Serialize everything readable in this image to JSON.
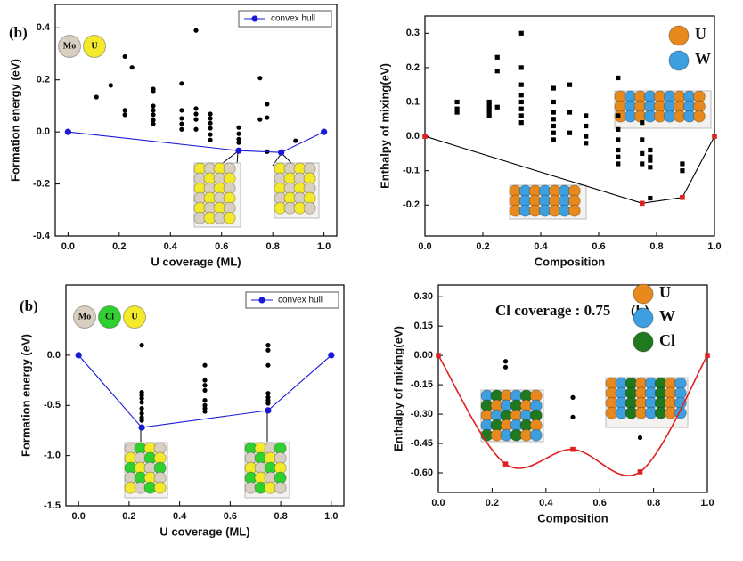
{
  "chart_data": [
    {
      "type": "scatter",
      "panel_label": "(b)",
      "xlabel": "U coverage (ML)",
      "ylabel": "Formation energy (eV)",
      "xlim": [
        -0.05,
        1.05
      ],
      "ylim": [
        -0.4,
        0.49
      ],
      "xticks": [
        {
          "value": 0,
          "label": "0.0"
        },
        0.2,
        0.4,
        0.6,
        0.8,
        {
          "value": 1,
          "label": "1.0"
        }
      ],
      "yticks": [
        -0.4,
        -0.2,
        {
          "value": 0,
          "label": "0.0"
        },
        0.2,
        0.4
      ],
      "atoms": [
        {
          "label": "Mo",
          "color": "#d9cfc0"
        },
        {
          "label": "U",
          "color": "#f2ea2a"
        }
      ],
      "legend": "upper right",
      "series": [
        {
          "color": "#000000",
          "marker": "circle",
          "x": [
            0.111,
            0.167,
            0.222,
            0.222,
            0.222,
            0.25,
            0.333,
            0.333,
            0.333,
            0.333,
            0.333,
            0.333,
            0.333,
            0.444,
            0.444,
            0.444,
            0.444,
            0.444,
            0.5,
            0.5,
            0.5,
            0.5,
            0.5,
            0.556,
            0.556,
            0.556,
            0.556,
            0.556,
            0.556,
            0.667,
            0.667,
            0.667,
            0.667,
            0.75,
            0.75,
            0.778,
            0.778,
            0.778,
            0.889
          ],
          "values": [
            0.134,
            0.179,
            0.29,
            0.083,
            0.066,
            0.248,
            0.165,
            0.155,
            0.1,
            0.083,
            0.066,
            0.045,
            0.031,
            0.186,
            0.083,
            0.052,
            0.031,
            0.01,
            0.39,
            0.09,
            0.069,
            0.048,
            0.01,
            0.069,
            0.052,
            0.034,
            0.014,
            -0.01,
            -0.031,
            0.017,
            -0.007,
            -0.028,
            -0.041,
            0.207,
            0.048,
            0.107,
            0.055,
            -0.076,
            -0.034
          ]
        },
        {
          "name": "convex hull",
          "color": "#1a1ad6",
          "marker": "circle",
          "line": true,
          "x": [
            0,
            0.667,
            0.833,
            1
          ],
          "values": [
            0,
            -0.072,
            -0.079,
            0
          ]
        }
      ]
    },
    {
      "type": "scatter",
      "xlabel": "Composition",
      "ylabel": "Enthalpy of mixing(eV)",
      "xlim": [
        0,
        1
      ],
      "ylim": [
        -0.29,
        0.35
      ],
      "xticks": [
        {
          "value": 0,
          "label": "0.0"
        },
        0.2,
        0.4,
        0.6,
        0.8,
        {
          "value": 1,
          "label": "1.0"
        }
      ],
      "yticks": [
        -0.2,
        -0.1,
        {
          "value": 0,
          "label": "0.0"
        },
        0.1,
        0.2,
        0.3
      ],
      "atoms": [
        {
          "label": "U",
          "color": "#e8891e"
        },
        {
          "label": "W",
          "color": "#3d9fe0"
        }
      ],
      "series": [
        {
          "color": "#000000",
          "marker": "square",
          "x": [
            0.111,
            0.111,
            0.111,
            0.222,
            0.222,
            0.222,
            0.222,
            0.222,
            0.25,
            0.25,
            0.25,
            0.333,
            0.333,
            0.333,
            0.333,
            0.333,
            0.333,
            0.333,
            0.333,
            0.444,
            0.444,
            0.444,
            0.444,
            0.444,
            0.444,
            0.444,
            0.5,
            0.5,
            0.5,
            0.556,
            0.556,
            0.556,
            0.556,
            0.667,
            0.667,
            0.667,
            0.667,
            0.667,
            0.667,
            0.667,
            0.75,
            0.75,
            0.75,
            0.75,
            0.778,
            0.778,
            0.778,
            0.778,
            0.778,
            0.889,
            0.889
          ],
          "values": [
            0.1,
            0.08,
            0.07,
            0.1,
            0.09,
            0.08,
            0.07,
            0.06,
            0.23,
            0.19,
            0.085,
            0.3,
            0.2,
            0.15,
            0.12,
            0.1,
            0.08,
            0.06,
            0.04,
            0.14,
            0.1,
            0.07,
            0.05,
            0.03,
            0.01,
            -0.01,
            0.15,
            0.07,
            0.01,
            0.06,
            0.03,
            0,
            -0.02,
            0.17,
            0.06,
            0.02,
            -0.01,
            -0.04,
            -0.06,
            -0.08,
            0.04,
            -0.01,
            -0.05,
            -0.08,
            -0.04,
            -0.06,
            -0.07,
            -0.09,
            -0.18,
            -0.08,
            -0.1
          ]
        },
        {
          "color": "#000000",
          "marker_color": "#e02020",
          "marker": "square",
          "line": true,
          "x": [
            0,
            0.75,
            0.889,
            1
          ],
          "values": [
            0,
            -0.195,
            -0.178,
            0
          ]
        }
      ]
    },
    {
      "type": "scatter",
      "panel_label": "(b)",
      "xlabel": "U coverage (ML)",
      "ylabel": "Formation energy (eV)",
      "xlim": [
        -0.05,
        1.05
      ],
      "ylim": [
        -1.5,
        0.7
      ],
      "xticks": [
        {
          "value": 0,
          "label": "0.0"
        },
        0.2,
        0.4,
        0.6,
        0.8,
        {
          "value": 1,
          "label": "1.0"
        }
      ],
      "yticks": [
        -1.5,
        {
          "value": -1,
          "label": "-1.0"
        },
        -0.5,
        {
          "value": 0,
          "label": "0.0"
        }
      ],
      "atoms": [
        {
          "label": "Mo",
          "color": "#d9cfc0"
        },
        {
          "label": "Cl",
          "color": "#2ed12e"
        },
        {
          "label": "U",
          "color": "#f2ea2a"
        }
      ],
      "legend": "upper right",
      "series": [
        {
          "color": "#000000",
          "marker": "circle",
          "x": [
            0.25,
            0.25,
            0.25,
            0.25,
            0.25,
            0.25,
            0.25,
            0.25,
            0.25,
            0.5,
            0.5,
            0.5,
            0.5,
            0.5,
            0.5,
            0.5,
            0.5,
            0.75,
            0.75,
            0.75,
            0.75,
            0.75,
            0.75,
            0.75
          ],
          "values": [
            0.1,
            -0.37,
            -0.4,
            -0.43,
            -0.47,
            -0.53,
            -0.58,
            -0.62,
            -0.65,
            -0.1,
            -0.25,
            -0.3,
            -0.35,
            -0.45,
            -0.5,
            -0.53,
            -0.56,
            0.1,
            0.05,
            -0.1,
            -0.38,
            -0.42,
            -0.45,
            -0.48
          ]
        },
        {
          "name": "convex hull",
          "color": "#1a1ad6",
          "marker": "circle",
          "line": true,
          "x": [
            0,
            0.25,
            0.75,
            1
          ],
          "values": [
            0,
            -0.72,
            -0.55,
            0
          ]
        }
      ]
    },
    {
      "type": "line",
      "panel_label": "(b)",
      "annotation": "Cl coverage : 0.75",
      "xlabel": "Composition",
      "ylabel": "Enthalpy of mixing(eV)",
      "xlim": [
        0,
        1
      ],
      "ylim": [
        -0.7,
        0.36
      ],
      "xticks": [
        {
          "value": 0,
          "label": "0.0"
        },
        0.2,
        0.4,
        0.6,
        0.8,
        {
          "value": 1,
          "label": "1.0"
        }
      ],
      "yticks": [
        {
          "value": -0.6,
          "label": "-0.60"
        },
        -0.45,
        {
          "value": -0.3,
          "label": "-0.30"
        },
        -0.15,
        {
          "value": 0,
          "label": "0.00"
        },
        0.15,
        {
          "value": 0.3,
          "label": "0.30"
        }
      ],
      "atoms": [
        {
          "label": "U",
          "color": "#e8891e"
        },
        {
          "label": "W",
          "color": "#3d9fe0"
        },
        {
          "label": "Cl",
          "color": "#1f7a1f"
        }
      ],
      "smooth": true,
      "series": [
        {
          "color": "#000000",
          "marker": "circle",
          "x": [
            0.25,
            0.25,
            0.5,
            0.5,
            0.75
          ],
          "values": [
            -0.03,
            -0.06,
            -0.215,
            -0.315,
            -0.42
          ]
        },
        {
          "color": "#e02020",
          "marker": "square",
          "line": true,
          "x": [
            0,
            0.25,
            0.5,
            0.75,
            1
          ],
          "values": [
            0,
            -0.555,
            -0.48,
            -0.595,
            0
          ]
        }
      ]
    }
  ]
}
